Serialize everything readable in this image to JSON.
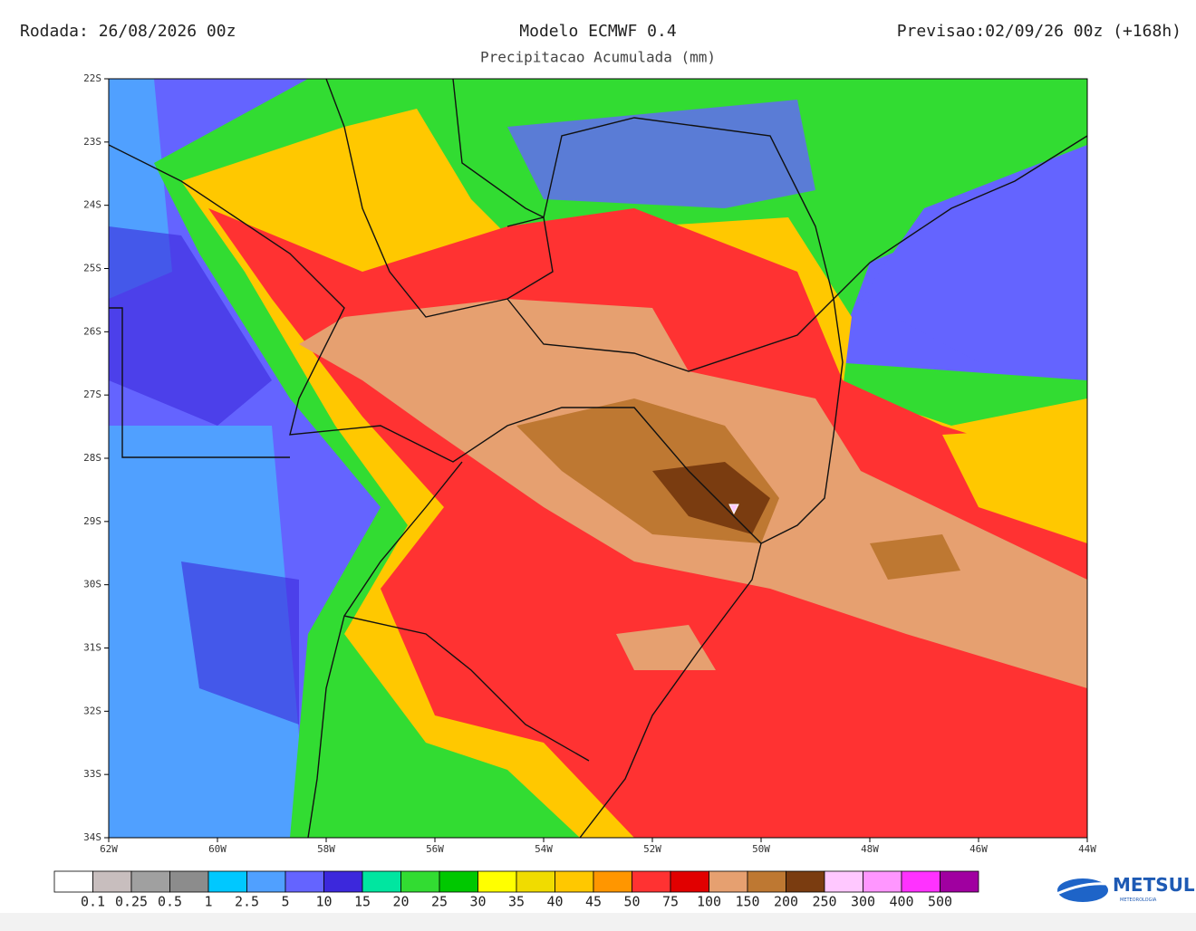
{
  "header": {
    "run": "Rodada: 26/08/2026 00z",
    "model": "Modelo ECMWF 0.4",
    "forecast": "Previsao:02/09/26 00z (+168h)",
    "subtitle": "Precipitacao Acumulada (mm)"
  },
  "axes": {
    "lat_labels": [
      "22S",
      "23S",
      "24S",
      "25S",
      "26S",
      "27S",
      "28S",
      "29S",
      "30S",
      "31S",
      "32S",
      "33S",
      "34S"
    ],
    "lon_labels": [
      "62W",
      "60W",
      "58W",
      "56W",
      "54W",
      "52W",
      "50W",
      "48W",
      "46W",
      "44W"
    ]
  },
  "legend": {
    "colors": [
      "#ffffff",
      "#c8bebe",
      "#a0a0a0",
      "#8c8c8c",
      "#00c8ff",
      "#50a0ff",
      "#6464ff",
      "#3c28dc",
      "#00e6a0",
      "#32dc32",
      "#00c800",
      "#ffff00",
      "#f0dc00",
      "#ffc800",
      "#ff9600",
      "#ff3232",
      "#e10000",
      "#e6a070",
      "#be7832",
      "#7a3c10",
      "#ffc8ff",
      "#ff96ff",
      "#ff32ff",
      "#a000a0"
    ],
    "labels": [
      "0.1",
      "0.25",
      "0.5",
      "1",
      "2.5",
      "5",
      "10",
      "15",
      "20",
      "25",
      "30",
      "35",
      "40",
      "45",
      "50",
      "75",
      "100",
      "150",
      "200",
      "250",
      "300",
      "400",
      "500"
    ]
  },
  "logo": {
    "name": "METSUL",
    "tagline": "METEOROLOGIA"
  }
}
